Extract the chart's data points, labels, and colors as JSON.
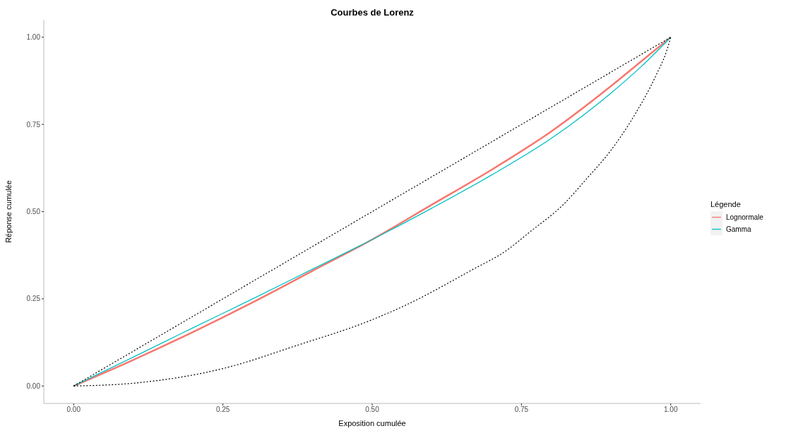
{
  "chart_data": {
    "type": "line",
    "title": "Courbes de Lorenz",
    "xlabel": "Exposition cumulée",
    "ylabel": "Réponse cumulée",
    "legend_title": "Légende",
    "xlim": [
      -0.05,
      1.05
    ],
    "ylim": [
      -0.05,
      1.05
    ],
    "xticks": [
      {
        "value": 0,
        "label": "0.00"
      },
      {
        "value": 0.25,
        "label": "0.25"
      },
      {
        "value": 0.5,
        "label": "0.50"
      },
      {
        "value": 0.75,
        "label": "0.75"
      },
      {
        "value": 1,
        "label": "1.00"
      }
    ],
    "yticks": [
      {
        "value": 0,
        "label": "0.00"
      },
      {
        "value": 0.25,
        "label": "0.25"
      },
      {
        "value": 0.5,
        "label": "0.50"
      },
      {
        "value": 0.75,
        "label": "0.75"
      },
      {
        "value": 1,
        "label": "1.00"
      }
    ],
    "grid": false,
    "legend": "right",
    "marker": "none",
    "series": [
      {
        "x": [
          0,
          1
        ],
        "values": [
          0,
          1
        ],
        "color": "#000000",
        "line_style": "dotted"
      },
      {
        "x": [
          0,
          0.1,
          0.25,
          0.375,
          0.5,
          0.56,
          0.664,
          0.726,
          0.765,
          0.82,
          0.859,
          0.899,
          0.938,
          0.976,
          0.993,
          1
        ],
        "values": [
          0,
          0.008,
          0.05,
          0.117,
          0.19,
          0.235,
          0.33,
          0.39,
          0.443,
          0.52,
          0.594,
          0.674,
          0.773,
          0.893,
          0.96,
          1
        ],
        "color": "#000000",
        "line_style": "dotted"
      },
      {
        "name": "Lognormale",
        "x": [
          0,
          0.1,
          0.2,
          0.3,
          0.4,
          0.5,
          0.6,
          0.7,
          0.8,
          0.9,
          0.95,
          1
        ],
        "values": [
          0,
          0.075,
          0.155,
          0.24,
          0.33,
          0.42,
          0.52,
          0.62,
          0.73,
          0.86,
          0.93,
          1
        ],
        "color": "#f8766d",
        "line_style": "solid"
      },
      {
        "name": "Gamma",
        "x": [
          0,
          0.1,
          0.2,
          0.3,
          0.4,
          0.5,
          0.6,
          0.7,
          0.8,
          0.9,
          0.95,
          1
        ],
        "values": [
          0,
          0.083,
          0.167,
          0.25,
          0.335,
          0.42,
          0.51,
          0.605,
          0.71,
          0.84,
          0.915,
          1
        ],
        "color": "#00bfc4",
        "line_style": "solid"
      }
    ]
  }
}
